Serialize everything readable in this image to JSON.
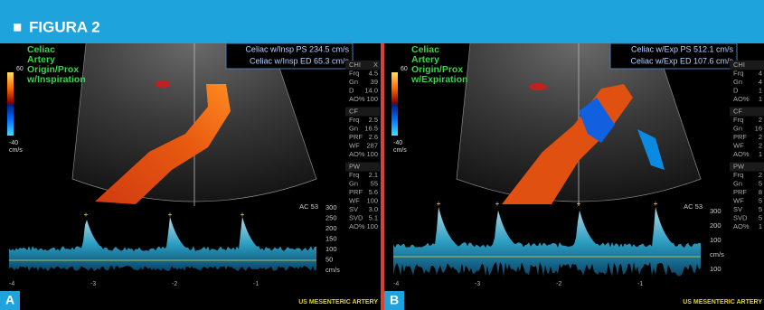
{
  "header": {
    "title": "FIGURA 2"
  },
  "panels": [
    {
      "label": "A",
      "annotation": [
        "Celiac",
        "Artery",
        "Origin/Prox",
        "w/Inspiration"
      ],
      "colorbar": {
        "max": "60",
        "min": "-40",
        "unit": "cm/s"
      },
      "measurements": [
        "Celiac w/Insp PS 234.5 cm/s",
        "Celiac w/Insp ED 65.3 cm/s"
      ],
      "settings": [
        {
          "title": "CHI",
          "extra": "X",
          "items": [
            {
              "k": "Frq",
              "v": "4.5"
            },
            {
              "k": "Gn",
              "v": "39"
            },
            {
              "k": "D",
              "v": "14.0"
            },
            {
              "k": "AO%",
              "v": "100"
            }
          ]
        },
        {
          "title": "CF",
          "items": [
            {
              "k": "Frq",
              "v": "2.5"
            },
            {
              "k": "Gn",
              "v": "16.5"
            },
            {
              "k": "PRF",
              "v": "2.6"
            },
            {
              "k": "WF",
              "v": "287"
            },
            {
              "k": "AO%",
              "v": "100"
            }
          ]
        },
        {
          "title": "PW",
          "items": [
            {
              "k": "Frq",
              "v": "2.1"
            },
            {
              "k": "Gn",
              "v": "55"
            },
            {
              "k": "PRF",
              "v": "5.6"
            },
            {
              "k": "WF",
              "v": "100"
            },
            {
              "k": "SV",
              "v": "3.0"
            },
            {
              "k": "SVD",
              "v": "5.1"
            },
            {
              "k": "AO%",
              "v": "100"
            }
          ]
        }
      ],
      "doppler": {
        "ac": "AC 53",
        "scale": [
          "300",
          "250",
          "200",
          "150",
          "100",
          "50"
        ],
        "unit": "cm/s",
        "below": [],
        "time": [
          "-4",
          "-3",
          "-2",
          "-1"
        ]
      },
      "probe": "US MESENTERIC ARTERY"
    },
    {
      "label": "B",
      "annotation": [
        "Celiac",
        "Artery",
        "Origin/Prox",
        "w/Expiration"
      ],
      "colorbar": {
        "max": "60",
        "min": "-40",
        "unit": "cm/s"
      },
      "measurements": [
        "Celiac w/Exp PS  512.1 cm/s",
        "Celiac w/Exp ED 107.6 cm/s"
      ],
      "settings": [
        {
          "title": "CHI",
          "items": [
            {
              "k": "Frq",
              "v": "4"
            },
            {
              "k": "Gn",
              "v": "4"
            },
            {
              "k": "D",
              "v": "1"
            },
            {
              "k": "AO%",
              "v": "1"
            }
          ]
        },
        {
          "title": "CF",
          "items": [
            {
              "k": "Frq",
              "v": "2"
            },
            {
              "k": "Gn",
              "v": "16"
            },
            {
              "k": "PRF",
              "v": "2"
            },
            {
              "k": "WF",
              "v": "2"
            },
            {
              "k": "AO%",
              "v": "1"
            }
          ]
        },
        {
          "title": "PW",
          "items": [
            {
              "k": "Frq",
              "v": "2"
            },
            {
              "k": "Gn",
              "v": "5"
            },
            {
              "k": "PRF",
              "v": "8"
            },
            {
              "k": "WF",
              "v": "5"
            },
            {
              "k": "SV",
              "v": "5"
            },
            {
              "k": "SVD",
              "v": "5"
            },
            {
              "k": "AO%",
              "v": "1"
            }
          ]
        }
      ],
      "doppler": {
        "ac": "AC 53",
        "scale": [
          "300",
          "200",
          "100"
        ],
        "unit": "cm/s",
        "below": [
          "100"
        ],
        "time": [
          "-4",
          "-3",
          "-2",
          "-1"
        ]
      },
      "probe": "US MESENTERIC ARTERY"
    }
  ]
}
